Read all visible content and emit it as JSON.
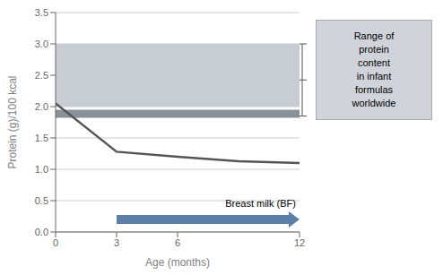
{
  "chart_data": {
    "type": "line",
    "xlabel": "Age (months)",
    "ylabel": "Protein (g)/100 kcal",
    "x": [
      0,
      3,
      6,
      9,
      12
    ],
    "values": [
      2.05,
      1.28,
      1.2,
      1.13,
      1.1
    ],
    "color": "#555555",
    "xlim": [
      0,
      12
    ],
    "ylim": [
      0,
      3.5
    ],
    "xticks": [
      0,
      3,
      6,
      12
    ],
    "yticks": [
      {
        "value": 0,
        "label": "0.0"
      },
      0.5,
      {
        "value": 1.0,
        "label": "1.0"
      },
      1.5,
      {
        "value": 2.0,
        "label": "2.0"
      },
      2.5,
      {
        "value": 3.0,
        "label": "3.0"
      },
      3.5
    ],
    "grid": true,
    "bands": [
      {
        "low": 2.0,
        "high": 3.0,
        "color": "#c8cdd4"
      },
      {
        "low": 1.82,
        "high": 1.95,
        "color": "#8a9099"
      }
    ],
    "arrow": {
      "x_start": 3,
      "x_end": 12,
      "y": 0.2,
      "color": "#5b7fa6"
    },
    "line_label": "Breast milk (BF)",
    "annotation": {
      "text": "Range of\nprotein\ncontent\nin infant\nformulas\nworldwide",
      "color": "#d0d4da"
    },
    "bracket": {
      "low": 1.85,
      "high": 3.0
    }
  }
}
